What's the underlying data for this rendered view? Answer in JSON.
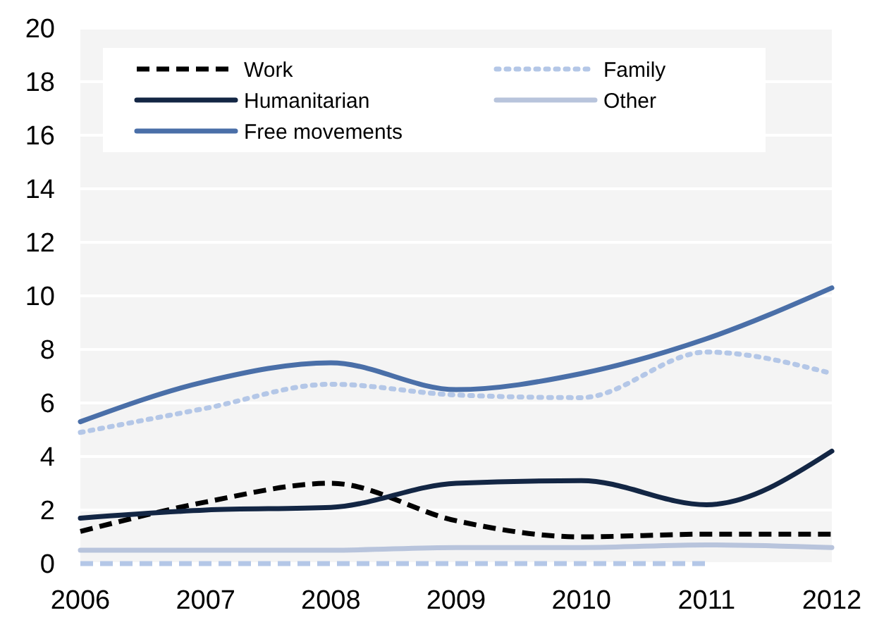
{
  "chart_data": {
    "type": "line",
    "x": [
      2006,
      2007,
      2008,
      2009,
      2010,
      2011,
      2012
    ],
    "xlim": [
      2006,
      2012
    ],
    "xticks": [
      2006,
      2007,
      2008,
      2009,
      2010,
      2011,
      2012
    ],
    "ylim": [
      0,
      20
    ],
    "yticks": [
      0,
      2,
      4,
      6,
      8,
      10,
      12,
      14,
      16,
      18,
      20
    ],
    "grid": "y",
    "legend": "top",
    "marker": "none",
    "series": [
      {
        "name": "Work",
        "color": "#000000",
        "line_style": "dashed",
        "values": [
          1.2,
          2.3,
          3.0,
          1.6,
          1.0,
          1.1,
          1.1
        ]
      },
      {
        "name": "Family",
        "color": "#b4c7e7",
        "line_style": "dotted",
        "values": [
          4.9,
          5.8,
          6.7,
          6.3,
          6.2,
          7.9,
          7.1
        ]
      },
      {
        "name": "Humanitarian",
        "color": "#132644",
        "line_style": "solid",
        "values": [
          1.7,
          2.0,
          2.1,
          3.0,
          3.1,
          2.2,
          4.2
        ]
      },
      {
        "name": "Other",
        "color": "#b8c4dc",
        "line_style": "solid",
        "values": [
          0.5,
          0.5,
          0.5,
          0.6,
          0.6,
          0.7,
          0.6
        ]
      },
      {
        "name": "Free movements",
        "color": "#4a6fa8",
        "line_style": "solid",
        "values": [
          5.3,
          6.8,
          7.5,
          6.5,
          7.1,
          8.4,
          10.3
        ]
      },
      {
        "color": "#b4c7e7",
        "line_style": "dashed",
        "values": [
          0,
          0,
          0,
          0,
          0,
          0,
          null
        ]
      }
    ]
  }
}
